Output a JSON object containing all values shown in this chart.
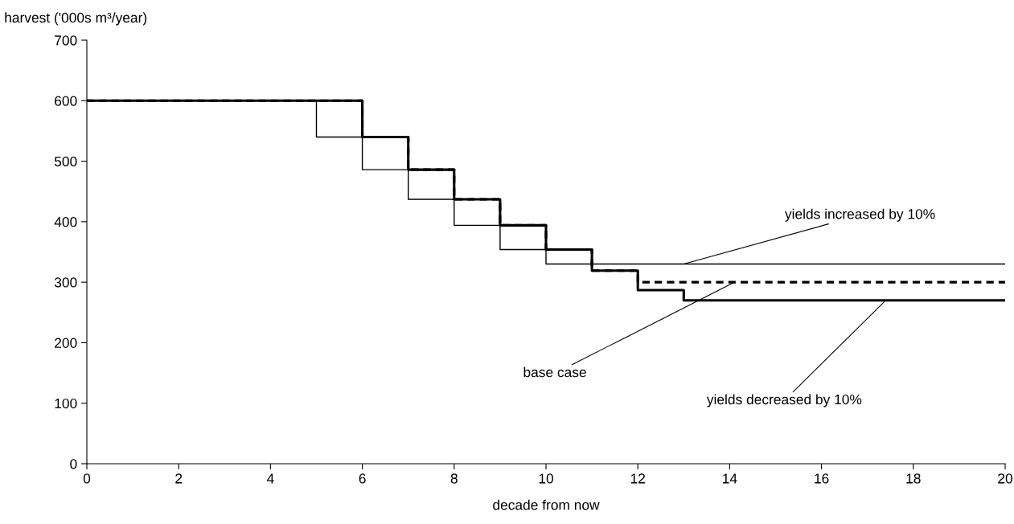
{
  "chart_data": {
    "type": "step",
    "xlabel": "decade from now",
    "ylabel": "harvest ('000s m³/year)",
    "xlim": [
      0,
      20
    ],
    "xticks": [
      0,
      2,
      4,
      6,
      8,
      10,
      12,
      14,
      16,
      18,
      20
    ],
    "ylim": [
      0,
      700
    ],
    "yticks": [
      0,
      100,
      200,
      300,
      400,
      500,
      600,
      700
    ],
    "grid": false,
    "legend": false,
    "series": [
      {
        "color": "#000000",
        "line_style": "solid",
        "x": [
          0,
          5,
          6,
          7,
          8,
          9,
          10,
          20
        ],
        "values": [
          600,
          540,
          486,
          437,
          394,
          354,
          330,
          330
        ]
      },
      {
        "color": "#000000",
        "line_style": "solid",
        "x": [
          0,
          6,
          7,
          8,
          9,
          10,
          11,
          12,
          13,
          20
        ],
        "values": [
          600,
          540,
          486,
          437,
          394,
          354,
          319,
          287,
          270,
          270
        ]
      },
      {
        "color": "#000000",
        "line_style": "dashed",
        "x": [
          0,
          6,
          7,
          8,
          9,
          10,
          11,
          12,
          20
        ],
        "values": [
          600,
          540,
          486,
          437,
          394,
          354,
          319,
          300,
          300
        ]
      }
    ],
    "annotations": [
      {
        "text": "yields increased by 10%",
        "x": 13,
        "y": 330
      },
      {
        "text": "base case",
        "x": 14.1,
        "y": 300
      },
      {
        "text": "yields decreased by 10%",
        "x": 17.4,
        "y": 270
      }
    ]
  }
}
